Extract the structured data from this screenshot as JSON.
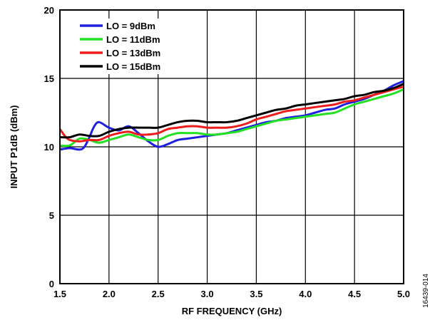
{
  "chart_data": {
    "type": "line",
    "xlabel": "RF FREQUENCY (GHz)",
    "ylabel": "INPUT P1dB (dBm)",
    "xlim": [
      1.5,
      5.0
    ],
    "ylim": [
      0,
      20
    ],
    "x_ticks": [
      "1.5",
      "2.0",
      "2.5",
      "3.0",
      "3.5",
      "4.0",
      "4.5",
      "5.0"
    ],
    "y_ticks": [
      "0",
      "5",
      "10",
      "15",
      "20"
    ],
    "grid": true,
    "legend_position": "top-left",
    "figure_id": "16439-014",
    "series": [
      {
        "name": "LO = 9dBm",
        "color": "#1f1fe0",
        "x": [
          1.5,
          1.6,
          1.7,
          1.75,
          1.8,
          1.85,
          1.9,
          2.0,
          2.1,
          2.2,
          2.3,
          2.4,
          2.5,
          2.6,
          2.7,
          2.8,
          2.9,
          3.0,
          3.1,
          3.2,
          3.3,
          3.4,
          3.5,
          3.6,
          3.7,
          3.8,
          3.9,
          4.0,
          4.1,
          4.2,
          4.3,
          4.4,
          4.5,
          4.6,
          4.7,
          4.8,
          4.9,
          5.0
        ],
        "y": [
          9.8,
          9.9,
          9.8,
          10.0,
          10.7,
          11.5,
          11.8,
          11.4,
          11.2,
          11.5,
          11.0,
          10.4,
          10.0,
          10.2,
          10.5,
          10.6,
          10.7,
          10.8,
          10.9,
          11.0,
          11.2,
          11.4,
          11.6,
          11.8,
          11.9,
          12.1,
          12.2,
          12.3,
          12.5,
          12.7,
          12.8,
          13.1,
          13.3,
          13.5,
          13.8,
          14.1,
          14.5,
          14.8
        ]
      },
      {
        "name": "LO = 11dBm",
        "color": "#22e022",
        "x": [
          1.5,
          1.6,
          1.7,
          1.8,
          1.9,
          2.0,
          2.1,
          2.2,
          2.3,
          2.4,
          2.5,
          2.6,
          2.7,
          2.8,
          2.9,
          3.0,
          3.1,
          3.2,
          3.3,
          3.4,
          3.5,
          3.6,
          3.7,
          3.8,
          3.9,
          4.0,
          4.1,
          4.2,
          4.3,
          4.4,
          4.5,
          4.6,
          4.7,
          4.8,
          4.9,
          5.0
        ],
        "y": [
          10.1,
          10.1,
          10.6,
          10.5,
          10.3,
          10.5,
          10.7,
          10.9,
          10.7,
          10.5,
          10.5,
          10.8,
          11.0,
          11.0,
          11.0,
          10.9,
          10.9,
          11.0,
          11.1,
          11.3,
          11.5,
          11.7,
          11.9,
          12.0,
          12.1,
          12.2,
          12.3,
          12.4,
          12.5,
          12.8,
          13.1,
          13.3,
          13.5,
          13.7,
          13.9,
          14.2
        ]
      },
      {
        "name": "LO = 13dBm",
        "color": "#ee1c1c",
        "x": [
          1.5,
          1.55,
          1.6,
          1.7,
          1.8,
          1.9,
          2.0,
          2.1,
          2.2,
          2.3,
          2.4,
          2.5,
          2.6,
          2.7,
          2.8,
          2.9,
          3.0,
          3.1,
          3.2,
          3.3,
          3.4,
          3.5,
          3.6,
          3.7,
          3.8,
          3.9,
          4.0,
          4.1,
          4.2,
          4.3,
          4.4,
          4.5,
          4.6,
          4.7,
          4.8,
          4.9,
          5.0
        ],
        "y": [
          11.3,
          10.8,
          10.5,
          10.4,
          10.5,
          10.5,
          10.8,
          11.0,
          11.1,
          10.9,
          10.9,
          11.0,
          11.3,
          11.4,
          11.5,
          11.5,
          11.4,
          11.4,
          11.4,
          11.5,
          11.7,
          12.0,
          12.2,
          12.4,
          12.6,
          12.7,
          12.8,
          12.9,
          13.0,
          13.1,
          13.3,
          13.4,
          13.6,
          13.8,
          14.0,
          14.2,
          14.4
        ]
      },
      {
        "name": "LO = 15dBm",
        "color": "#000000",
        "x": [
          1.5,
          1.6,
          1.7,
          1.8,
          1.9,
          2.0,
          2.1,
          2.2,
          2.3,
          2.4,
          2.5,
          2.6,
          2.7,
          2.8,
          2.9,
          3.0,
          3.1,
          3.2,
          3.3,
          3.4,
          3.5,
          3.6,
          3.7,
          3.8,
          3.9,
          4.0,
          4.1,
          4.2,
          4.3,
          4.4,
          4.5,
          4.6,
          4.7,
          4.8,
          4.9,
          5.0
        ],
        "y": [
          10.7,
          10.7,
          10.9,
          10.8,
          10.8,
          11.1,
          11.3,
          11.4,
          11.4,
          11.4,
          11.4,
          11.6,
          11.8,
          11.9,
          11.9,
          11.8,
          11.8,
          11.8,
          11.9,
          12.1,
          12.3,
          12.5,
          12.7,
          12.8,
          13.0,
          13.1,
          13.2,
          13.3,
          13.4,
          13.5,
          13.7,
          13.8,
          14.0,
          14.1,
          14.3,
          14.6
        ]
      }
    ]
  }
}
